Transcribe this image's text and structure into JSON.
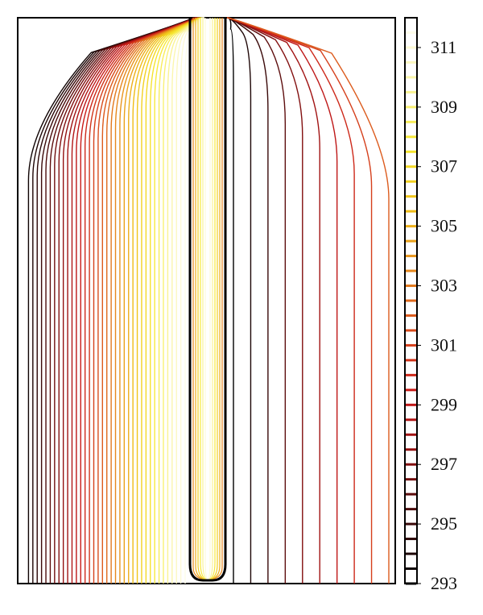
{
  "chart_data": {
    "type": "contour",
    "title": "",
    "xlabel": "",
    "ylabel": "",
    "colorbar": {
      "min": 293,
      "max": 312,
      "tick_labels": [
        "311",
        "309",
        "307",
        "305",
        "303",
        "301",
        "299",
        "297",
        "295",
        "293"
      ],
      "tick_values": [
        311,
        309,
        307,
        305,
        303,
        301,
        299,
        297,
        295,
        293
      ],
      "level_values": [
        293,
        293.5,
        294,
        294.5,
        295,
        295.5,
        296,
        296.5,
        297,
        297.5,
        298,
        298.5,
        299,
        299.5,
        300,
        300.5,
        301,
        301.5,
        302,
        302.5,
        303,
        303.5,
        304,
        304.5,
        305,
        305.5,
        306,
        306.5,
        307,
        307.5,
        308,
        308.5,
        309,
        309.5,
        310,
        310.5,
        311,
        311.5
      ],
      "colormap": [
        "#000000",
        "#3d0a0a",
        "#8a1010",
        "#c81818",
        "#d84a1c",
        "#e68a1e",
        "#f0c018",
        "#f6e830",
        "#fbf5a8",
        "#ffffff"
      ]
    },
    "legend": "right colorbar",
    "grid": false
  }
}
